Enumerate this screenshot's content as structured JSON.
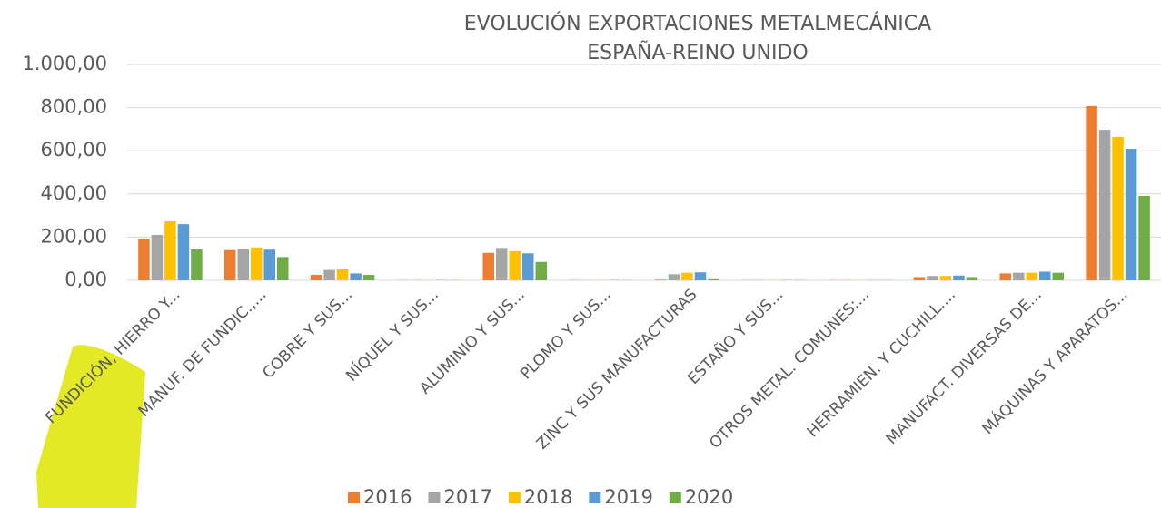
{
  "chart_data": {
    "type": "bar",
    "title": [
      "EVOLUCIÓN EXPORTACIONES METALMECÁNICA",
      "ESPAÑA-REINO UNIDO"
    ],
    "categories": [
      "FUNDICIÓN, HIERRO Y...",
      "MANUF. DE FUNDIC.,...",
      "COBRE Y SUS...",
      "NÍQUEL Y SUS...",
      "ALUMINIO Y SUS...",
      "PLOMO Y SUS...",
      "ZINC Y SUS MANUFACTURAS",
      "ESTAÑO Y SUS...",
      "OTROS METAL. COMUNES;...",
      "HERRAMIEN. Y CUCHILL....",
      "MANUFACT. DIVERSAS DE...",
      "MÁQUINAS Y APARATOS..."
    ],
    "series": [
      {
        "name": "2016",
        "color": "#ED7D31",
        "values": [
          193,
          140,
          25,
          1,
          127,
          1,
          3,
          1,
          1,
          15,
          32,
          807
        ]
      },
      {
        "name": "2017",
        "color": "#A5A5A5",
        "values": [
          210,
          145,
          48,
          1,
          150,
          1,
          28,
          1,
          1,
          20,
          35,
          697
        ]
      },
      {
        "name": "2018",
        "color": "#FFC000",
        "values": [
          273,
          152,
          52,
          1,
          135,
          1,
          35,
          1,
          1,
          20,
          35,
          664
        ]
      },
      {
        "name": "2019",
        "color": "#5B9BD5",
        "values": [
          260,
          142,
          32,
          1,
          125,
          1,
          37,
          1,
          1,
          22,
          40,
          609
        ]
      },
      {
        "name": "2020",
        "color": "#70AD47",
        "values": [
          143,
          108,
          25,
          1,
          85,
          1,
          5,
          1,
          1,
          15,
          35,
          391
        ]
      }
    ],
    "ylim": [
      0,
      1000
    ],
    "yticks": [
      {
        "value": 0,
        "label": "0,00"
      },
      {
        "value": 200,
        "label": "200,00"
      },
      {
        "value": 400,
        "label": "400,00"
      },
      {
        "value": 600,
        "label": "600,00"
      },
      {
        "value": 800,
        "label": "800,00"
      },
      {
        "value": 1000,
        "label": "1.000,00"
      }
    ],
    "grid": true,
    "legend": "bottom"
  }
}
